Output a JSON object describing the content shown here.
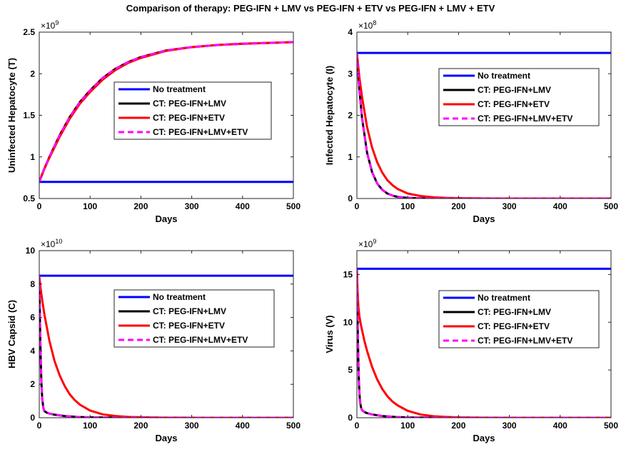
{
  "figure_title": "Comparison of therapy: PEG-IFN + LMV vs PEG-IFN + ETV vs PEG-IFN + LMV + ETV",
  "colors": {
    "no_treatment": "#0000ff",
    "peg_lmv": "#000000",
    "peg_etv": "#ff0000",
    "peg_lmv_etv": "#ff00ff"
  },
  "legend_labels": [
    "No treatment",
    "CT: PEG-IFN+LMV",
    "CT: PEG-IFN+ETV",
    "CT: PEG-IFN+LMV+ETV"
  ],
  "chart_data": [
    {
      "type": "line",
      "xlabel": "Days",
      "ylabel": "Uninfected Hepatocyte (T)",
      "exponent_label": "×10^9",
      "exponent_base": "10",
      "exponent_power": "9",
      "xlim": [
        0,
        500
      ],
      "ylim": [
        0.5,
        2.5
      ],
      "xticks": [
        0,
        100,
        200,
        300,
        400,
        500
      ],
      "yticks": [
        0.5,
        1,
        1.5,
        2,
        2.5
      ],
      "ytick_labels": [
        "0.5",
        "1",
        "1.5",
        "2",
        "2.5"
      ],
      "legend_placement": "center",
      "series": [
        {
          "name": "No treatment",
          "x": [
            0,
            500
          ],
          "y": [
            0.7,
            0.7
          ]
        },
        {
          "name": "CT: PEG-IFN+LMV",
          "x": [
            0,
            10,
            20,
            40,
            60,
            80,
            100,
            125,
            150,
            175,
            200,
            250,
            300,
            350,
            400,
            450,
            500
          ],
          "y": [
            0.7,
            0.86,
            1.0,
            1.26,
            1.48,
            1.66,
            1.8,
            1.95,
            2.06,
            2.14,
            2.2,
            2.28,
            2.32,
            2.345,
            2.36,
            2.37,
            2.38
          ]
        },
        {
          "name": "CT: PEG-IFN+ETV",
          "x": [
            0,
            10,
            20,
            40,
            60,
            80,
            100,
            125,
            150,
            175,
            200,
            250,
            300,
            350,
            400,
            450,
            500
          ],
          "y": [
            0.7,
            0.855,
            0.99,
            1.24,
            1.46,
            1.64,
            1.78,
            1.93,
            2.045,
            2.13,
            2.19,
            2.275,
            2.32,
            2.345,
            2.36,
            2.37,
            2.38
          ]
        },
        {
          "name": "CT: PEG-IFN+LMV+ETV",
          "x": [
            0,
            10,
            20,
            40,
            60,
            80,
            100,
            125,
            150,
            175,
            200,
            250,
            300,
            350,
            400,
            450,
            500
          ],
          "y": [
            0.7,
            0.86,
            1.0,
            1.26,
            1.48,
            1.66,
            1.8,
            1.95,
            2.06,
            2.14,
            2.2,
            2.28,
            2.32,
            2.345,
            2.36,
            2.37,
            2.38
          ]
        }
      ]
    },
    {
      "type": "line",
      "xlabel": "Days",
      "ylabel": "Infected Hepatocyte (I)",
      "exponent_label": "×10^8",
      "exponent_base": "10",
      "exponent_power": "8",
      "xlim": [
        0,
        500
      ],
      "ylim": [
        0,
        4
      ],
      "xticks": [
        0,
        100,
        200,
        300,
        400,
        500
      ],
      "yticks": [
        0,
        1,
        2,
        3,
        4
      ],
      "ytick_labels": [
        "0",
        "1",
        "2",
        "3",
        "4"
      ],
      "legend_placement": "center-right",
      "series": [
        {
          "name": "No treatment",
          "x": [
            0,
            500
          ],
          "y": [
            3.5,
            3.5
          ]
        },
        {
          "name": "CT: PEG-IFN+LMV",
          "x": [
            0,
            5,
            10,
            20,
            30,
            40,
            50,
            60,
            70,
            80,
            100,
            125,
            150,
            200,
            300,
            500
          ],
          "y": [
            3.5,
            2.6,
            1.95,
            1.1,
            0.63,
            0.36,
            0.21,
            0.12,
            0.07,
            0.04,
            0.015,
            0.005,
            0.002,
            0,
            0,
            0
          ]
        },
        {
          "name": "CT: PEG-IFN+ETV",
          "x": [
            0,
            5,
            10,
            20,
            30,
            40,
            50,
            60,
            70,
            80,
            100,
            125,
            150,
            175,
            200,
            250,
            300,
            500
          ],
          "y": [
            3.5,
            2.9,
            2.45,
            1.72,
            1.22,
            0.87,
            0.62,
            0.44,
            0.32,
            0.23,
            0.12,
            0.06,
            0.03,
            0.015,
            0.008,
            0.003,
            0.001,
            0
          ]
        },
        {
          "name": "CT: PEG-IFN+LMV+ETV",
          "x": [
            0,
            5,
            10,
            20,
            30,
            40,
            50,
            60,
            70,
            80,
            100,
            125,
            150,
            200,
            300,
            500
          ],
          "y": [
            3.5,
            2.6,
            1.95,
            1.1,
            0.63,
            0.36,
            0.21,
            0.12,
            0.07,
            0.04,
            0.015,
            0.005,
            0.002,
            0,
            0,
            0
          ]
        }
      ]
    },
    {
      "type": "line",
      "xlabel": "Days",
      "ylabel": "HBV Capsid (C)",
      "exponent_label": "×10^10",
      "exponent_base": "10",
      "exponent_power": "10",
      "xlim": [
        0,
        500
      ],
      "ylim": [
        0,
        10
      ],
      "xticks": [
        0,
        100,
        200,
        300,
        400,
        500
      ],
      "yticks": [
        0,
        2,
        4,
        6,
        8,
        10
      ],
      "ytick_labels": [
        "0",
        "2",
        "4",
        "6",
        "8",
        "10"
      ],
      "legend_placement": "center",
      "series": [
        {
          "name": "No treatment",
          "x": [
            0,
            500
          ],
          "y": [
            8.5,
            8.5
          ]
        },
        {
          "name": "CT: PEG-IFN+LMV",
          "x": [
            0,
            1,
            2,
            3,
            4,
            5,
            6,
            8,
            10,
            15,
            20,
            30,
            50,
            75,
            100,
            150,
            200,
            500
          ],
          "y": [
            8.5,
            6.5,
            4.8,
            3.4,
            2.3,
            1.6,
            1.1,
            0.6,
            0.4,
            0.3,
            0.25,
            0.18,
            0.1,
            0.05,
            0.02,
            0.005,
            0,
            0
          ]
        },
        {
          "name": "CT: PEG-IFN+ETV",
          "x": [
            0,
            2,
            5,
            10,
            20,
            30,
            40,
            50,
            60,
            70,
            80,
            100,
            125,
            150,
            175,
            200,
            250,
            300,
            500
          ],
          "y": [
            8.5,
            7.9,
            7.2,
            6.2,
            4.6,
            3.4,
            2.55,
            1.9,
            1.4,
            1.05,
            0.78,
            0.43,
            0.2,
            0.1,
            0.05,
            0.025,
            0.006,
            0.002,
            0
          ]
        },
        {
          "name": "CT: PEG-IFN+LMV+ETV",
          "x": [
            0,
            1,
            2,
            3,
            4,
            5,
            6,
            8,
            10,
            15,
            20,
            30,
            50,
            75,
            100,
            150,
            200,
            500
          ],
          "y": [
            8.5,
            6.5,
            4.8,
            3.4,
            2.3,
            1.6,
            1.1,
            0.6,
            0.4,
            0.3,
            0.25,
            0.18,
            0.1,
            0.05,
            0.02,
            0.005,
            0,
            0
          ]
        }
      ]
    },
    {
      "type": "line",
      "xlabel": "Days",
      "ylabel": "Virus (V)",
      "exponent_label": "×10^9",
      "exponent_base": "10",
      "exponent_power": "9",
      "xlim": [
        0,
        500
      ],
      "ylim": [
        0,
        17.5
      ],
      "xticks": [
        0,
        100,
        200,
        300,
        400,
        500
      ],
      "yticks": [
        0,
        5,
        10,
        15
      ],
      "ytick_labels": [
        "0",
        "5",
        "10",
        "15"
      ],
      "legend_placement": "center-right",
      "series": [
        {
          "name": "No treatment",
          "x": [
            0,
            500
          ],
          "y": [
            15.6,
            15.6
          ]
        },
        {
          "name": "CT: PEG-IFN+LMV",
          "x": [
            0,
            1,
            2,
            3,
            4,
            5,
            6,
            8,
            10,
            15,
            20,
            30,
            50,
            75,
            100,
            150,
            200,
            500
          ],
          "y": [
            15.6,
            11.5,
            8.2,
            5.6,
            3.8,
            2.6,
            1.8,
            1.1,
            0.8,
            0.6,
            0.48,
            0.34,
            0.18,
            0.08,
            0.03,
            0.008,
            0,
            0
          ]
        },
        {
          "name": "CT: PEG-IFN+ETV",
          "x": [
            0,
            1,
            2,
            3,
            5,
            8,
            10,
            15,
            20,
            30,
            40,
            50,
            60,
            70,
            80,
            100,
            125,
            150,
            175,
            200,
            250,
            300,
            500
          ],
          "y": [
            15.6,
            13.8,
            12.5,
            11.6,
            10.6,
            9.7,
            9.2,
            8.0,
            7.0,
            5.3,
            4.0,
            3.0,
            2.25,
            1.7,
            1.3,
            0.72,
            0.34,
            0.16,
            0.08,
            0.04,
            0.01,
            0.003,
            0
          ]
        },
        {
          "name": "CT: PEG-IFN+LMV+ETV",
          "x": [
            0,
            1,
            2,
            3,
            4,
            5,
            6,
            8,
            10,
            15,
            20,
            30,
            50,
            75,
            100,
            150,
            200,
            500
          ],
          "y": [
            15.6,
            11.5,
            8.2,
            5.6,
            3.8,
            2.6,
            1.8,
            1.1,
            0.8,
            0.6,
            0.48,
            0.34,
            0.18,
            0.08,
            0.03,
            0.008,
            0,
            0
          ]
        }
      ]
    }
  ]
}
